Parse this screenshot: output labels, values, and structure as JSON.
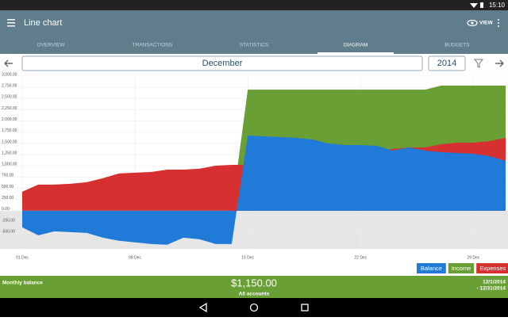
{
  "status_bar": {
    "time": "15:10"
  },
  "app_bar": {
    "title": "Line chart",
    "action": "VIEW"
  },
  "tabs": [
    "OVERVIEW",
    "TRANSACTIONS",
    "STATISTICS",
    "DIAGRAM",
    "BUDGETS"
  ],
  "period": {
    "month": "December",
    "year": "2014"
  },
  "chart_data": {
    "type": "area",
    "x": [
      1,
      2,
      3,
      4,
      5,
      6,
      7,
      8,
      9,
      10,
      11,
      12,
      13,
      14,
      15,
      16,
      17,
      18,
      19,
      20,
      21,
      22,
      23,
      24,
      25,
      26,
      27,
      28,
      29,
      30,
      31
    ],
    "xlim": [
      1,
      31
    ],
    "xticks": [
      {
        "value": 1,
        "label": "01 Dec"
      },
      {
        "value": 8,
        "label": "08 Dec"
      },
      {
        "value": 15,
        "label": "15 Dec"
      },
      {
        "value": 22,
        "label": "22 Dec"
      },
      {
        "value": 29,
        "label": "29 Dec"
      }
    ],
    "ylim": [
      -850,
      3000
    ],
    "yticks": [
      {
        "value": 3000,
        "label": "3,000.00"
      },
      {
        "value": 2750,
        "label": "2,750.00"
      },
      {
        "value": 2500,
        "label": "2,500.00"
      },
      {
        "value": 2250,
        "label": "2,250.00"
      },
      {
        "value": 2000,
        "label": "2,000.00"
      },
      {
        "value": 1750,
        "label": "1,750.00"
      },
      {
        "value": 1500,
        "label": "1,500.00"
      },
      {
        "value": 1250,
        "label": "1,250.00"
      },
      {
        "value": 1000,
        "label": "1,000.00"
      },
      {
        "value": 750,
        "label": "750.00"
      },
      {
        "value": 500,
        "label": "500.00"
      },
      {
        "value": 250,
        "label": "250.00"
      },
      {
        "value": 0,
        "label": "0.00"
      },
      {
        "value": -250,
        "label": "-250.00"
      },
      {
        "value": -500,
        "label": "-500.00"
      }
    ],
    "grid": true,
    "series": [
      {
        "name": "Balance",
        "color": "#1f7ad8",
        "values": [
          -370,
          -547,
          -459,
          -476,
          -494,
          -600,
          -670,
          -705,
          -741,
          -758,
          -600,
          -635,
          -741,
          -741,
          1676,
          1658,
          1640,
          1623,
          1587,
          1499,
          1464,
          1464,
          1446,
          1340,
          1411,
          1340,
          1305,
          1287,
          1270,
          1217,
          1111
        ]
      },
      {
        "name": "Income",
        "color": "#6a9f36",
        "values": [
          0,
          0,
          0,
          0,
          0,
          0,
          0,
          0,
          0,
          0,
          0,
          0,
          0,
          0,
          2698,
          2698,
          2698,
          2698,
          2698,
          2698,
          2698,
          2698,
          2698,
          2698,
          2698,
          2698,
          2787,
          2787,
          2787,
          2787,
          2787
        ]
      },
      {
        "name": "Expenses",
        "color": "#d63031",
        "values": [
          423,
          582,
          582,
          600,
          635,
          723,
          829,
          847,
          864,
          917,
          917,
          935,
          1005,
          1023,
          1023,
          1100,
          1150,
          1200,
          1230,
          1260,
          1290,
          1320,
          1340,
          1376,
          1411,
          1411,
          1482,
          1517,
          1517,
          1552,
          1623
        ]
      }
    ]
  },
  "footer": {
    "label": "Monthly balance",
    "amount": "$1,150.00",
    "accounts": "All accounts",
    "date_from": "12/1/2014",
    "date_to": "- 12/31/2014"
  }
}
